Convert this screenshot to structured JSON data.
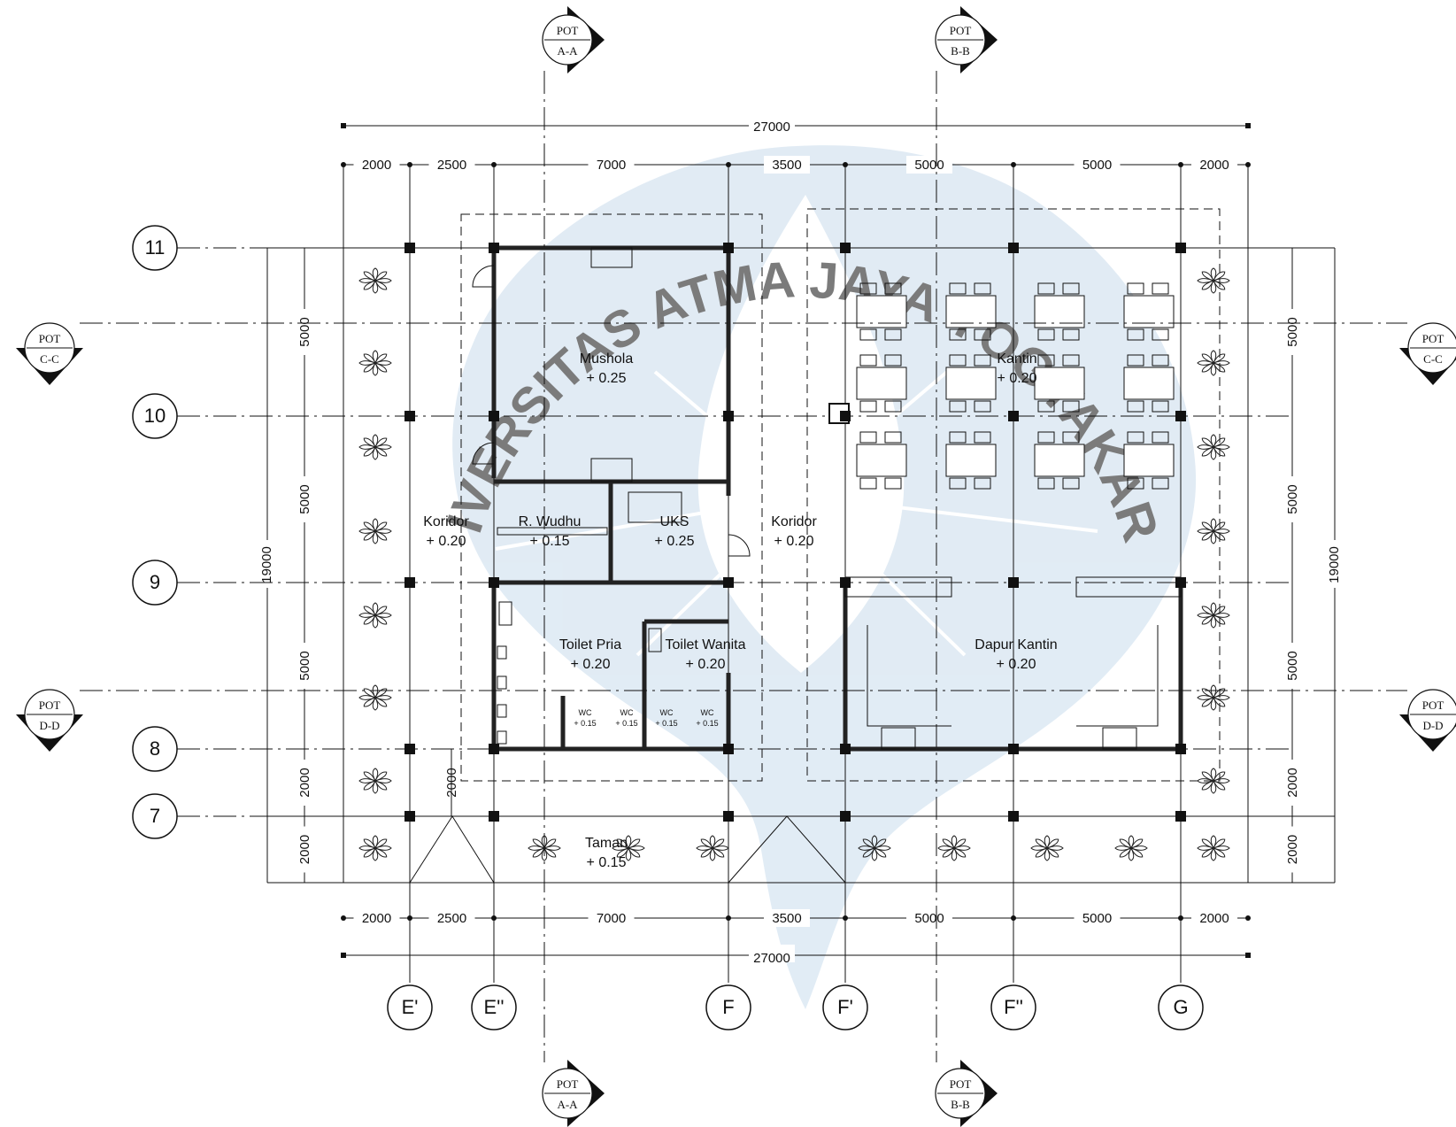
{
  "sections": {
    "pot": "POT",
    "aa": "A-A",
    "bb": "B-B",
    "cc": "C-C",
    "dd": "D-D"
  },
  "grid": {
    "rows": [
      "11",
      "10",
      "9",
      "8",
      "7"
    ],
    "cols": [
      "E'",
      "E''",
      "F",
      "F'",
      "F''",
      "G"
    ]
  },
  "dimensions": {
    "total_width": "27000",
    "spans": [
      "2000",
      "2500",
      "7000",
      "3500",
      "5000",
      "5000",
      "2000"
    ],
    "total_height": "19000",
    "row_spans": [
      "5000",
      "5000",
      "5000",
      "2000",
      "2000"
    ],
    "taman_offset": "2000"
  },
  "rooms": {
    "mushola": {
      "name": "Mushola",
      "level": "+ 0.25"
    },
    "kantin": {
      "name": "Kantin",
      "level": "+ 0.20"
    },
    "koridor_left": {
      "name": "Koridor",
      "level": "+ 0.20"
    },
    "wudhu": {
      "name": "R. Wudhu",
      "level": "+ 0.15"
    },
    "uks": {
      "name": "UKS",
      "level": "+ 0.25"
    },
    "koridor_right": {
      "name": "Koridor",
      "level": "+ 0.20"
    },
    "toilet_pria": {
      "name": "Toilet Pria",
      "level": "+ 0.20"
    },
    "toilet_wanita": {
      "name": "Toilet Wanita",
      "level": "+ 0.20"
    },
    "dapur": {
      "name": "Dapur Kantin",
      "level": "+ 0.20"
    },
    "taman": {
      "name": "Taman",
      "level": "+ 0.15"
    },
    "wc_label": "WC",
    "wc_level": "+ 0.15"
  },
  "watermark": {
    "text": "UNIVERSITAS ATMA JAYA YOGYAKARTA",
    "color": "#c9dcec"
  }
}
